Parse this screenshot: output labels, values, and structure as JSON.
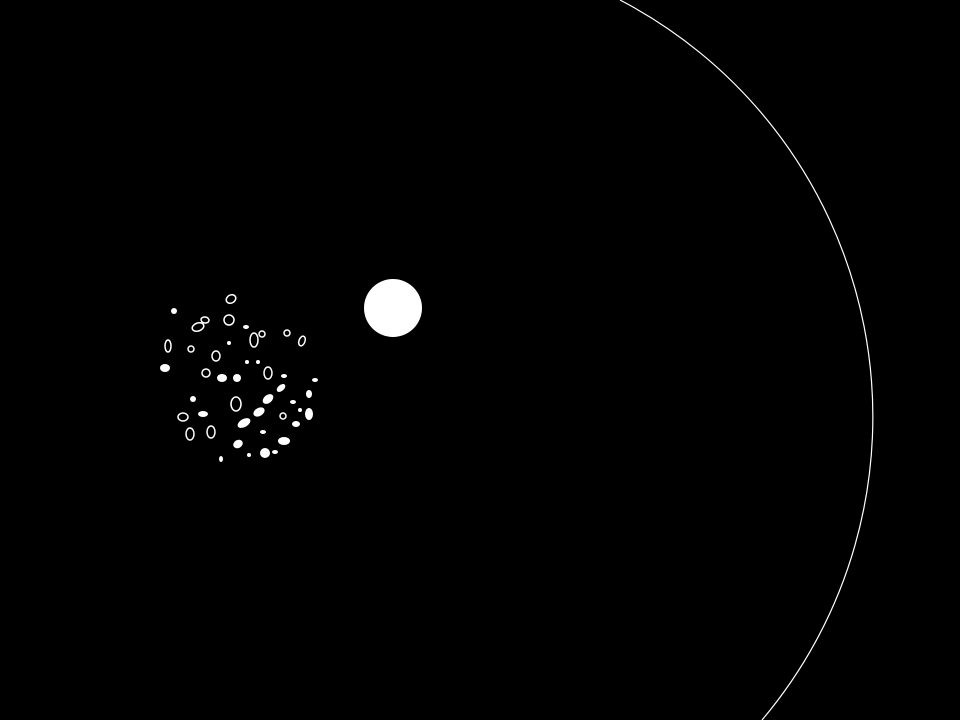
{
  "colors": {
    "background": "#000000",
    "foreground": "#ffffff"
  },
  "scene": {
    "arena": {
      "icon": "boundary-arc",
      "style": "thin outline"
    },
    "planet": {
      "icon": "solid-white-circle"
    },
    "debris_field": {
      "icon": "asteroid-fragments",
      "fragment_count": 46
    }
  }
}
